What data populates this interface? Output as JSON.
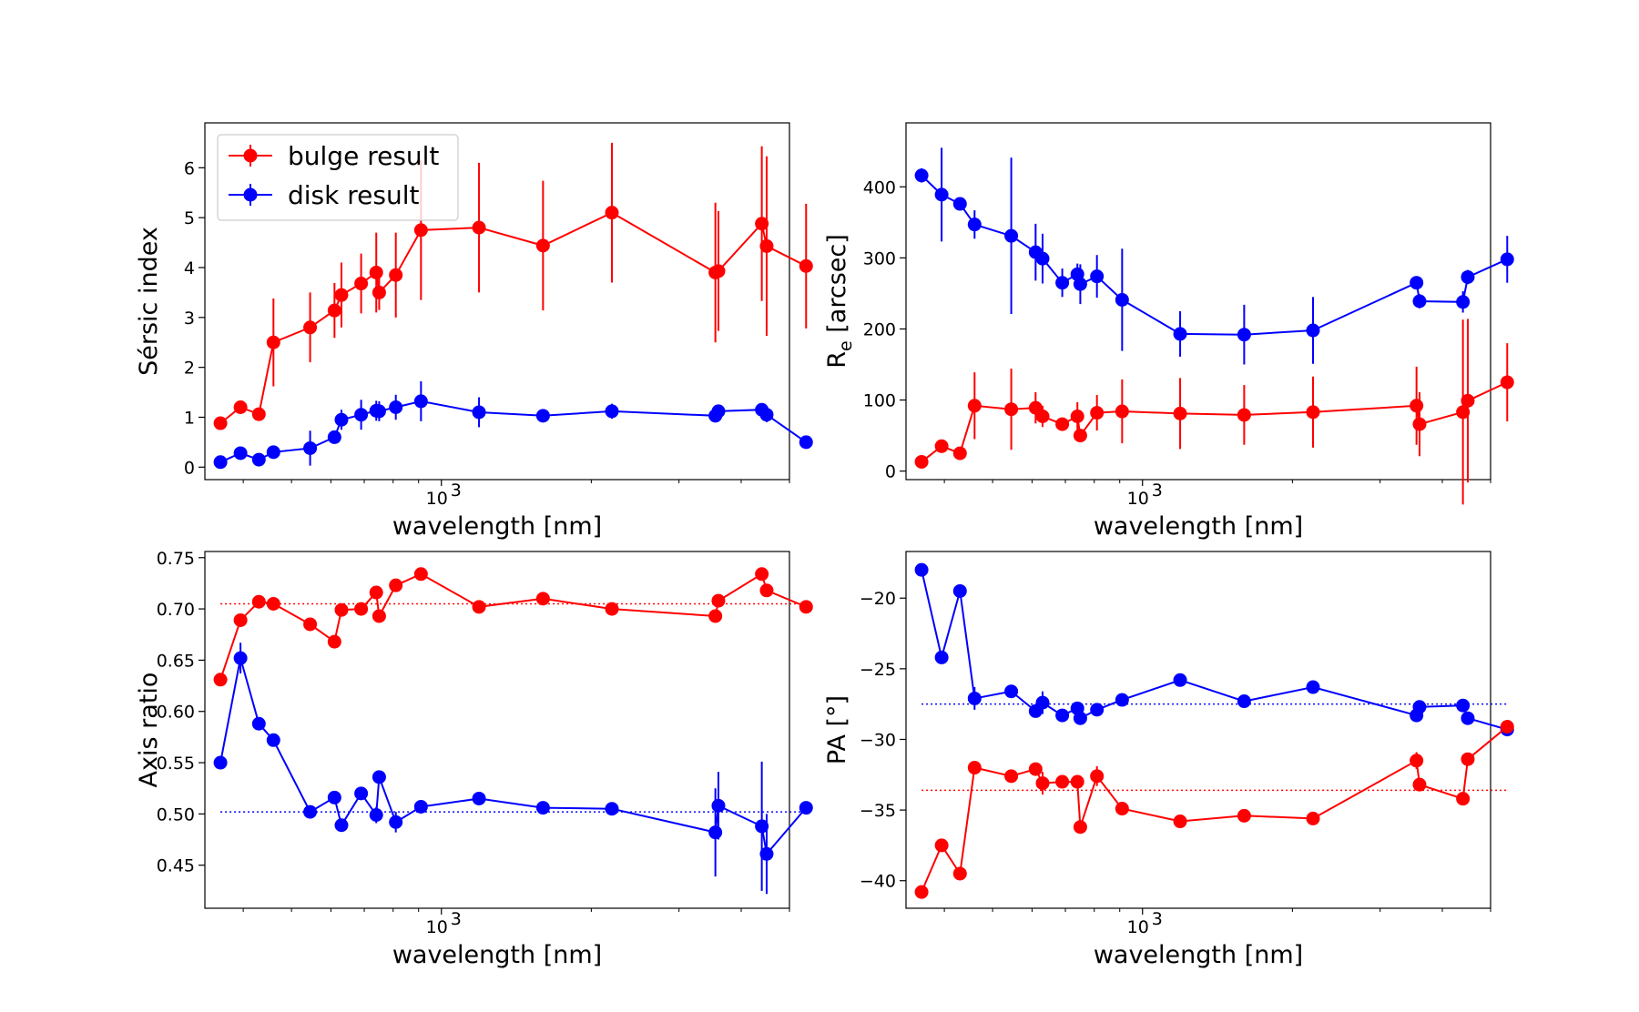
{
  "chart_data": [
    {
      "type": "line",
      "panel": "top-left",
      "xlabel": "wavelength [nm]",
      "ylabel": "Sérsic index",
      "xscale": "log",
      "xlim": [
        335,
        5000
      ],
      "ylim": [
        -0.25,
        6.9
      ],
      "xticks": [
        {
          "value": 1000,
          "label": "10",
          "exp": "3"
        }
      ],
      "yticks": [
        {
          "value": 0,
          "label": "0"
        },
        {
          "value": 1,
          "label": "1"
        },
        {
          "value": 2,
          "label": "2"
        },
        {
          "value": 3,
          "label": "3"
        },
        {
          "value": 4,
          "label": "4"
        },
        {
          "value": 5,
          "label": "5"
        },
        {
          "value": 6,
          "label": "6"
        }
      ],
      "legend": {
        "placement": "upper-left",
        "entries": [
          "bulge result",
          "disk result"
        ]
      },
      "series": [
        {
          "name": "bulge result",
          "color": "#ff0000",
          "x": [
            360,
            395,
            430,
            460,
            545,
            610,
            630,
            690,
            740,
            750,
            810,
            910,
            1190,
            1600,
            2200,
            3550,
            3600,
            4400,
            4500,
            5400
          ],
          "y": [
            0.88,
            1.2,
            1.06,
            2.5,
            2.8,
            3.14,
            3.45,
            3.68,
            3.9,
            3.5,
            3.85,
            4.75,
            4.8,
            4.44,
            5.1,
            3.9,
            3.93,
            4.88,
            4.43,
            4.03
          ],
          "err": [
            0.05,
            0.05,
            0.05,
            0.88,
            0.7,
            0.55,
            0.65,
            0.6,
            0.8,
            0.35,
            0.85,
            1.4,
            1.3,
            1.3,
            1.4,
            1.4,
            1.2,
            1.55,
            1.8,
            1.25
          ]
        },
        {
          "name": "disk result",
          "color": "#0000ff",
          "x": [
            360,
            395,
            430,
            460,
            545,
            610,
            630,
            690,
            740,
            750,
            810,
            910,
            1190,
            1600,
            2200,
            3550,
            3600,
            4400,
            4500,
            5400
          ],
          "y": [
            0.1,
            0.28,
            0.15,
            0.3,
            0.38,
            0.6,
            0.95,
            1.05,
            1.13,
            1.12,
            1.2,
            1.32,
            1.1,
            1.03,
            1.12,
            1.03,
            1.12,
            1.15,
            1.05,
            0.5
          ],
          "err": [
            0.05,
            0.05,
            0.05,
            0.05,
            0.35,
            0.1,
            0.2,
            0.3,
            0.2,
            0.2,
            0.25,
            0.4,
            0.3,
            0.1,
            0.15,
            0.1,
            0.1,
            0.08,
            0.15,
            0.05
          ]
        }
      ]
    },
    {
      "type": "line",
      "panel": "top-right",
      "xlabel": "wavelength [nm]",
      "ylabel": "R",
      "ylabel_sub": "e",
      "ylabel_rest": " [arcsec]",
      "xscale": "log",
      "xlim": [
        335,
        5000
      ],
      "ylim": [
        -12,
        490
      ],
      "xticks": [
        {
          "value": 1000,
          "label": "10",
          "exp": "3"
        }
      ],
      "yticks": [
        {
          "value": 0,
          "label": "0"
        },
        {
          "value": 100,
          "label": "100"
        },
        {
          "value": 200,
          "label": "200"
        },
        {
          "value": 300,
          "label": "300"
        },
        {
          "value": 400,
          "label": "400"
        }
      ],
      "series": [
        {
          "name": "disk result",
          "color": "#0000ff",
          "x": [
            360,
            395,
            430,
            460,
            545,
            610,
            630,
            690,
            740,
            750,
            810,
            910,
            1190,
            1600,
            2200,
            3550,
            3600,
            4400,
            4500,
            5400
          ],
          "y": [
            416,
            389,
            376,
            347,
            331,
            308,
            299,
            265,
            277,
            263,
            274,
            241,
            193,
            192,
            198,
            265,
            239,
            238,
            273,
            298
          ],
          "err": [
            10,
            66,
            8,
            20,
            110,
            40,
            35,
            20,
            15,
            28,
            30,
            72,
            32,
            42,
            47,
            8,
            10,
            15,
            10,
            33
          ]
        },
        {
          "name": "bulge result",
          "color": "#ff0000",
          "x": [
            360,
            395,
            430,
            460,
            545,
            610,
            630,
            690,
            740,
            750,
            810,
            910,
            1190,
            1600,
            2200,
            3550,
            3600,
            4400,
            4500,
            5400
          ],
          "y": [
            13,
            35,
            25,
            92,
            87,
            89,
            77,
            66,
            77,
            50,
            82,
            84,
            81,
            79,
            83,
            92,
            66,
            83,
            99,
            125
          ],
          "err": [
            3,
            3,
            3,
            47,
            57,
            22,
            15,
            5,
            20,
            3,
            25,
            45,
            50,
            42,
            50,
            55,
            45,
            130,
            115,
            55
          ]
        }
      ]
    },
    {
      "type": "line",
      "panel": "bottom-left",
      "xlabel": "wavelength [nm]",
      "ylabel": "Axis ratio",
      "xscale": "log",
      "xlim": [
        335,
        5000
      ],
      "ylim": [
        0.408,
        0.756
      ],
      "xticks": [
        {
          "value": 1000,
          "label": "10",
          "exp": "3"
        }
      ],
      "yticks": [
        {
          "value": 0.45,
          "label": "0.45"
        },
        {
          "value": 0.5,
          "label": "0.50"
        },
        {
          "value": 0.55,
          "label": "0.55"
        },
        {
          "value": 0.6,
          "label": "0.60"
        },
        {
          "value": 0.65,
          "label": "0.65"
        },
        {
          "value": 0.7,
          "label": "0.70"
        },
        {
          "value": 0.75,
          "label": "0.75"
        }
      ],
      "reference_lines": [
        {
          "y": 0.705,
          "color": "#ff0000"
        },
        {
          "y": 0.502,
          "color": "#0000ff"
        }
      ],
      "series": [
        {
          "name": "bulge result",
          "color": "#ff0000",
          "x": [
            360,
            395,
            430,
            460,
            545,
            610,
            630,
            690,
            740,
            750,
            810,
            910,
            1190,
            1600,
            2200,
            3550,
            3600,
            4400,
            4500,
            5400
          ],
          "y": [
            0.631,
            0.689,
            0.707,
            0.705,
            0.685,
            0.668,
            0.699,
            0.7,
            0.716,
            0.693,
            0.723,
            0.734,
            0.702,
            0.71,
            0.7,
            0.693,
            0.708,
            0.734,
            0.718,
            0.702
          ],
          "err": [
            0.002,
            0.002,
            0.002,
            0.002,
            0.002,
            0.002,
            0.002,
            0.002,
            0.002,
            0.002,
            0.002,
            0.002,
            0.002,
            0.002,
            0.002,
            0.006,
            0.002,
            0.002,
            0.002,
            0.002
          ]
        },
        {
          "name": "disk result",
          "color": "#0000ff",
          "x": [
            360,
            395,
            430,
            460,
            545,
            610,
            630,
            690,
            740,
            750,
            810,
            910,
            1190,
            1600,
            2200,
            3550,
            3600,
            4400,
            4500,
            5400
          ],
          "y": [
            0.55,
            0.652,
            0.588,
            0.572,
            0.502,
            0.516,
            0.489,
            0.52,
            0.499,
            0.536,
            0.492,
            0.507,
            0.515,
            0.506,
            0.505,
            0.482,
            0.508,
            0.488,
            0.461,
            0.506
          ],
          "err": [
            0.002,
            0.015,
            0.002,
            0.002,
            0.002,
            0.002,
            0.002,
            0.002,
            0.008,
            0.003,
            0.01,
            0.002,
            0.002,
            0.002,
            0.002,
            0.043,
            0.033,
            0.063,
            0.039,
            0.002
          ]
        }
      ]
    },
    {
      "type": "line",
      "panel": "bottom-right",
      "xlabel": "wavelength [nm]",
      "ylabel": "PA [°]",
      "xscale": "log",
      "xlim": [
        335,
        5000
      ],
      "ylim": [
        -41.95,
        -16.7
      ],
      "xticks": [
        {
          "value": 1000,
          "label": "10",
          "exp": "3"
        }
      ],
      "yticks": [
        {
          "value": -40,
          "label": "−40"
        },
        {
          "value": -35,
          "label": "−35"
        },
        {
          "value": -30,
          "label": "−30"
        },
        {
          "value": -25,
          "label": "−25"
        },
        {
          "value": -20,
          "label": "−20"
        }
      ],
      "reference_lines": [
        {
          "y": -27.5,
          "color": "#0000ff"
        },
        {
          "y": -33.6,
          "color": "#ff0000"
        }
      ],
      "series": [
        {
          "name": "disk result",
          "color": "#0000ff",
          "x": [
            360,
            395,
            430,
            460,
            545,
            610,
            630,
            690,
            740,
            750,
            810,
            910,
            1190,
            1600,
            2200,
            3550,
            3600,
            4400,
            4500,
            5400
          ],
          "y": [
            -18.0,
            -24.2,
            -19.5,
            -27.1,
            -26.6,
            -28.0,
            -27.4,
            -28.3,
            -27.8,
            -28.5,
            -27.9,
            -27.2,
            -25.8,
            -27.3,
            -26.3,
            -28.3,
            -27.7,
            -27.6,
            -28.5,
            -29.3
          ],
          "err": [
            0.1,
            0.1,
            0.1,
            0.8,
            0.1,
            0.4,
            0.8,
            0.1,
            0.3,
            0.4,
            0.3,
            0.1,
            0.1,
            0.1,
            0.1,
            0.1,
            0.1,
            0.3,
            0.1,
            0.1
          ]
        },
        {
          "name": "bulge result",
          "color": "#ff0000",
          "x": [
            360,
            395,
            430,
            460,
            545,
            610,
            630,
            690,
            740,
            750,
            810,
            910,
            1190,
            1600,
            2200,
            3550,
            3600,
            4400,
            4500,
            5400
          ],
          "y": [
            -40.8,
            -37.5,
            -39.5,
            -32.0,
            -32.6,
            -32.1,
            -33.1,
            -33.0,
            -33.0,
            -36.2,
            -32.6,
            -34.9,
            -35.8,
            -35.4,
            -35.6,
            -31.5,
            -33.2,
            -34.2,
            -31.4,
            -29.1
          ],
          "err": [
            0.1,
            0.1,
            0.1,
            0.1,
            0.1,
            0.3,
            0.8,
            0.1,
            0.1,
            0.1,
            0.7,
            0.1,
            0.1,
            0.1,
            0.1,
            0.6,
            0.1,
            0.1,
            0.1,
            0.1
          ]
        }
      ]
    }
  ]
}
